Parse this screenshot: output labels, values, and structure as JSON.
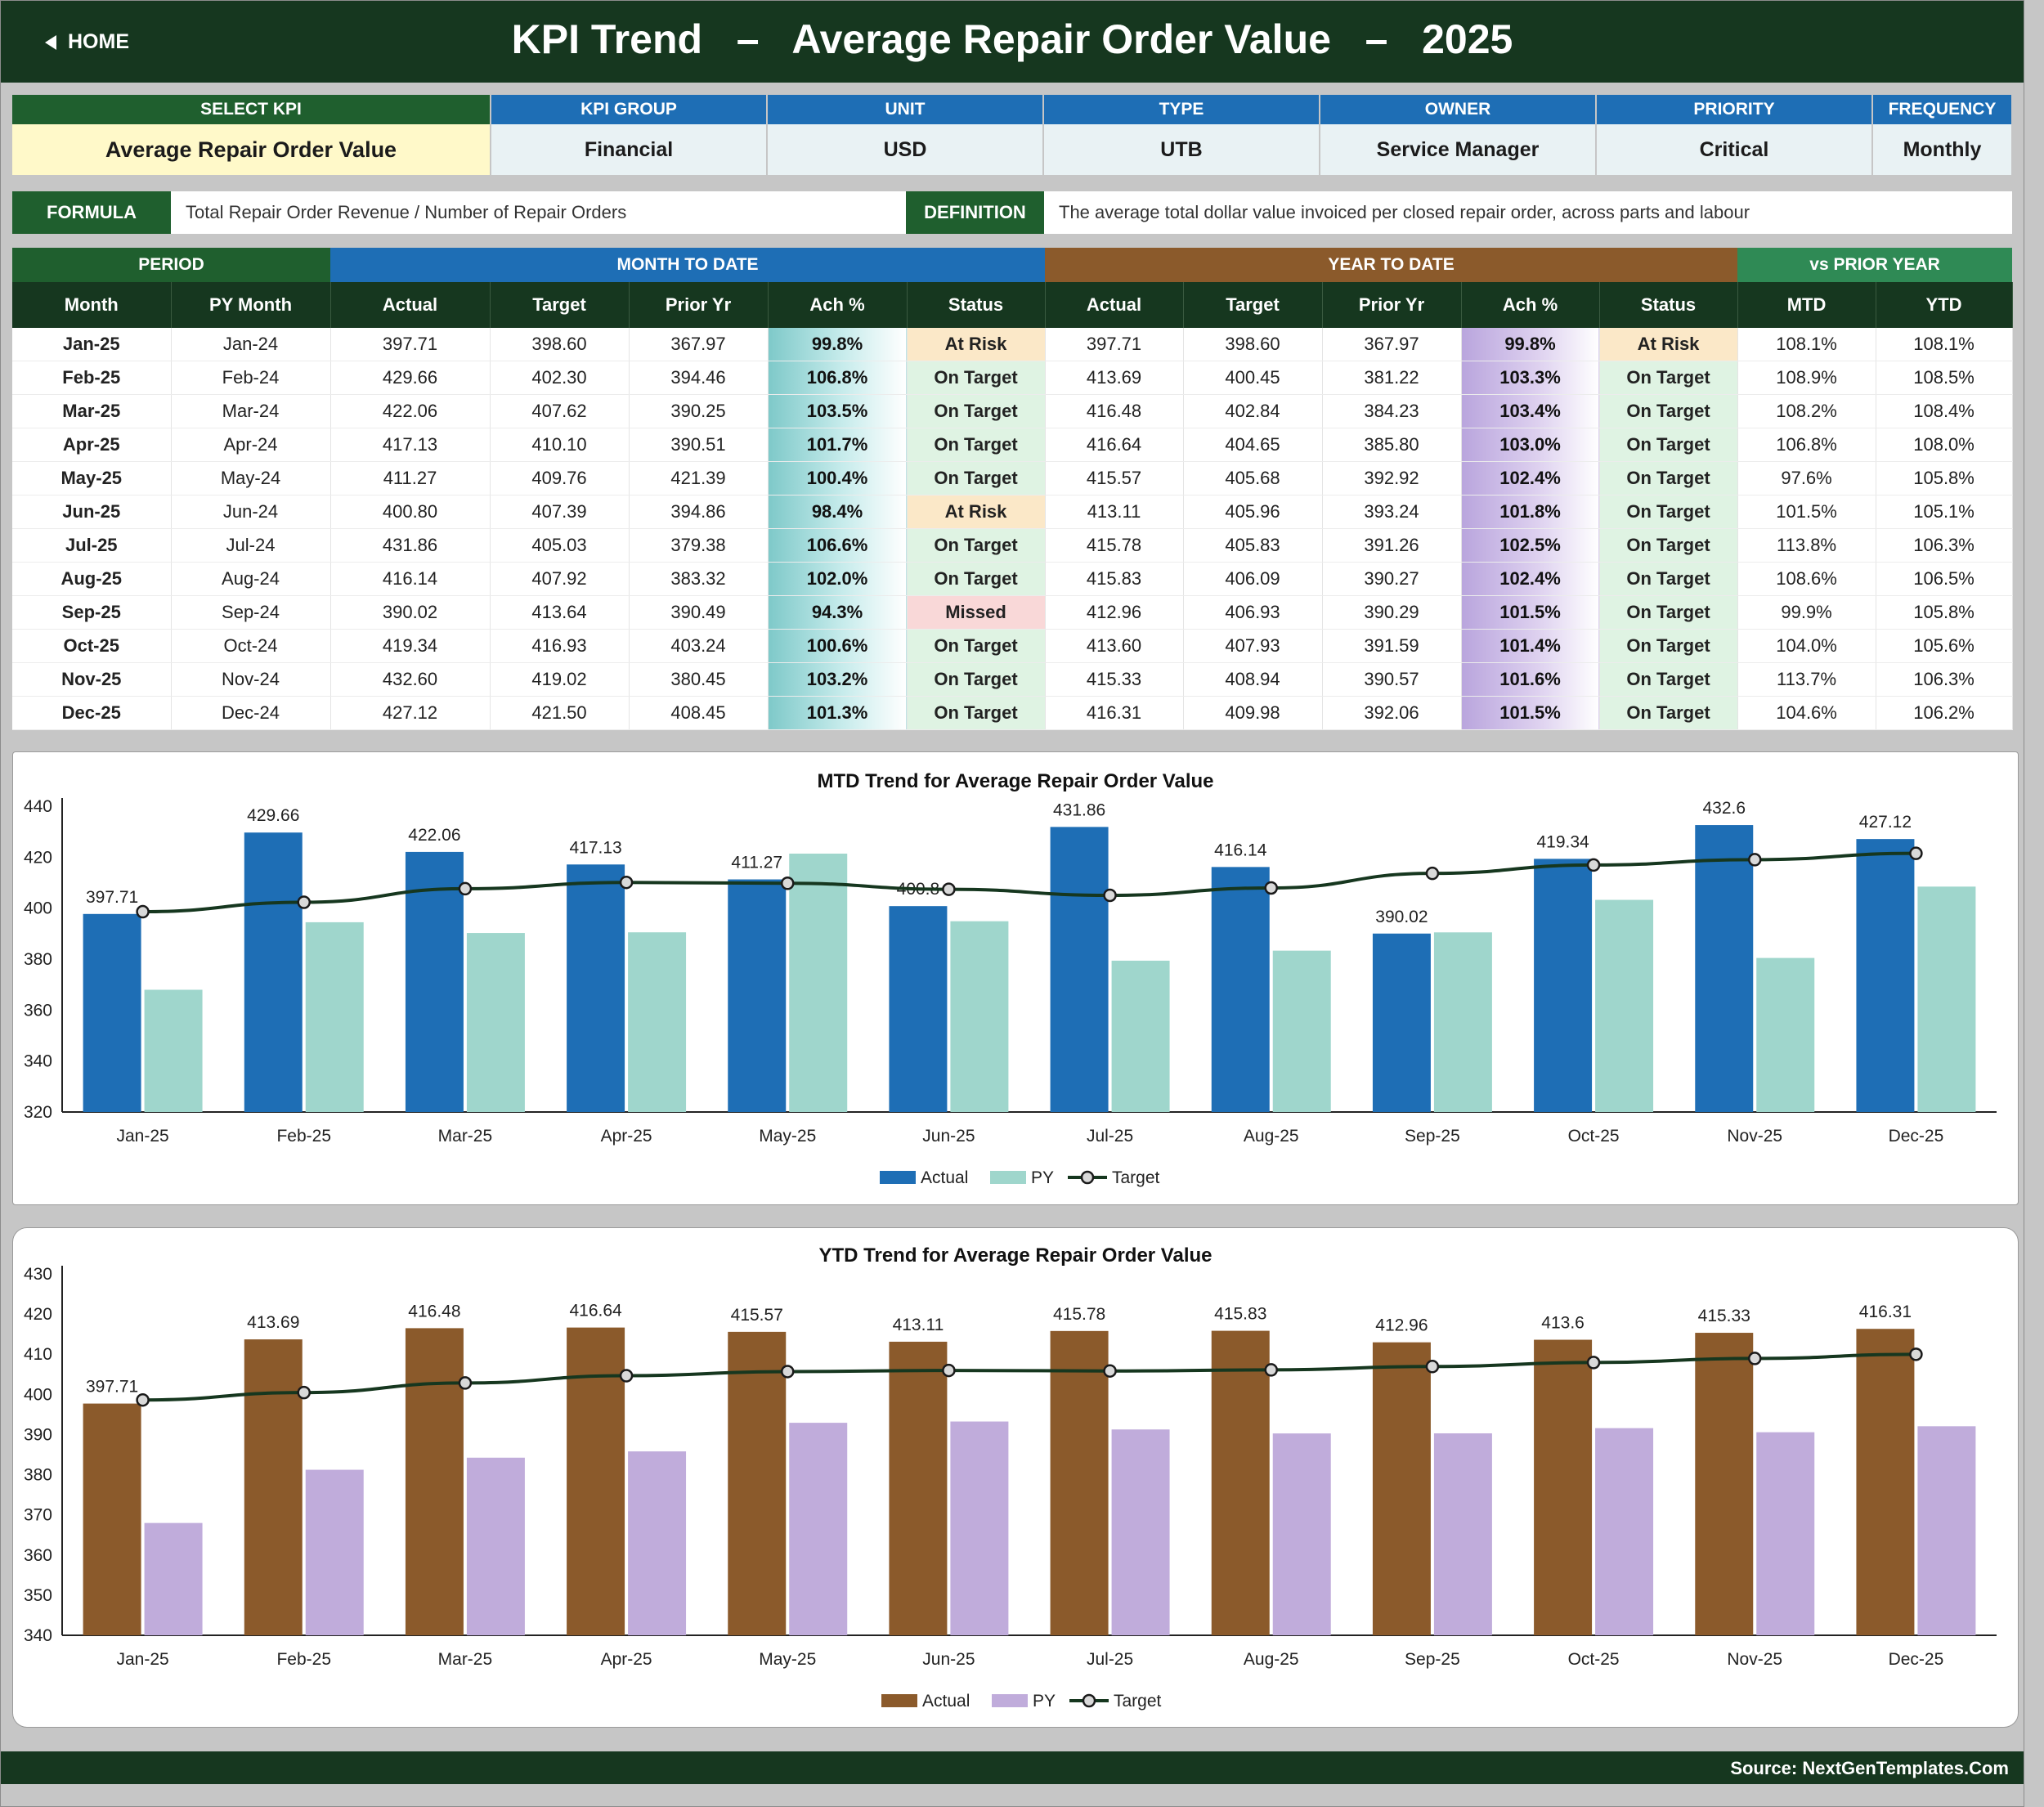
{
  "header": {
    "home_label": "HOME",
    "title": "KPI Trend   –   Average Repair Order Value   –   2025"
  },
  "kpi_info": {
    "headers": [
      "SELECT KPI",
      "KPI GROUP",
      "UNIT",
      "TYPE",
      "OWNER",
      "PRIORITY",
      "FREQUENCY"
    ],
    "values": [
      "Average Repair Order Value",
      "Financial",
      "USD",
      "UTB",
      "Service Manager",
      "Critical",
      "Monthly"
    ]
  },
  "formula": {
    "label": "FORMULA",
    "value": "Total Repair Order Revenue / Number of Repair Orders",
    "definition_label": "DEFINITION",
    "definition": "The average total dollar value invoiced per closed repair order, across parts and labour"
  },
  "table": {
    "groups": [
      "PERIOD",
      "MONTH TO DATE",
      "YEAR TO DATE",
      "vs PRIOR YEAR"
    ],
    "columns": [
      "Month",
      "PY Month",
      "Actual",
      "Target",
      "Prior Yr",
      "Ach %",
      "Status",
      "Actual",
      "Target",
      "Prior Yr",
      "Ach %",
      "Status",
      "MTD",
      "YTD"
    ],
    "rows": [
      [
        "Jan-25",
        "Jan-24",
        "397.71",
        "398.60",
        "367.97",
        "99.8%",
        "At Risk",
        "397.71",
        "398.60",
        "367.97",
        "99.8%",
        "At Risk",
        "108.1%",
        "108.1%"
      ],
      [
        "Feb-25",
        "Feb-24",
        "429.66",
        "402.30",
        "394.46",
        "106.8%",
        "On Target",
        "413.69",
        "400.45",
        "381.22",
        "103.3%",
        "On Target",
        "108.9%",
        "108.5%"
      ],
      [
        "Mar-25",
        "Mar-24",
        "422.06",
        "407.62",
        "390.25",
        "103.5%",
        "On Target",
        "416.48",
        "402.84",
        "384.23",
        "103.4%",
        "On Target",
        "108.2%",
        "108.4%"
      ],
      [
        "Apr-25",
        "Apr-24",
        "417.13",
        "410.10",
        "390.51",
        "101.7%",
        "On Target",
        "416.64",
        "404.65",
        "385.80",
        "103.0%",
        "On Target",
        "106.8%",
        "108.0%"
      ],
      [
        "May-25",
        "May-24",
        "411.27",
        "409.76",
        "421.39",
        "100.4%",
        "On Target",
        "415.57",
        "405.68",
        "392.92",
        "102.4%",
        "On Target",
        "97.6%",
        "105.8%"
      ],
      [
        "Jun-25",
        "Jun-24",
        "400.80",
        "407.39",
        "394.86",
        "98.4%",
        "At Risk",
        "413.11",
        "405.96",
        "393.24",
        "101.8%",
        "On Target",
        "101.5%",
        "105.1%"
      ],
      [
        "Jul-25",
        "Jul-24",
        "431.86",
        "405.03",
        "379.38",
        "106.6%",
        "On Target",
        "415.78",
        "405.83",
        "391.26",
        "102.5%",
        "On Target",
        "113.8%",
        "106.3%"
      ],
      [
        "Aug-25",
        "Aug-24",
        "416.14",
        "407.92",
        "383.32",
        "102.0%",
        "On Target",
        "415.83",
        "406.09",
        "390.27",
        "102.4%",
        "On Target",
        "108.6%",
        "106.5%"
      ],
      [
        "Sep-25",
        "Sep-24",
        "390.02",
        "413.64",
        "390.49",
        "94.3%",
        "Missed",
        "412.96",
        "406.93",
        "390.29",
        "101.5%",
        "On Target",
        "99.9%",
        "105.8%"
      ],
      [
        "Oct-25",
        "Oct-24",
        "419.34",
        "416.93",
        "403.24",
        "100.6%",
        "On Target",
        "413.60",
        "407.93",
        "391.59",
        "101.4%",
        "On Target",
        "104.0%",
        "105.6%"
      ],
      [
        "Nov-25",
        "Nov-24",
        "432.60",
        "419.02",
        "380.45",
        "103.2%",
        "On Target",
        "415.33",
        "408.94",
        "390.57",
        "101.6%",
        "On Target",
        "113.7%",
        "106.3%"
      ],
      [
        "Dec-25",
        "Dec-24",
        "427.12",
        "421.50",
        "408.45",
        "101.3%",
        "On Target",
        "416.31",
        "409.98",
        "392.06",
        "101.5%",
        "On Target",
        "104.6%",
        "106.2%"
      ]
    ]
  },
  "colors": {
    "dark_green": "#16371f",
    "mtd_blue": "#1e6eb5",
    "ytd_brown": "#8b5a2b",
    "vs_py_green": "#2f8a55",
    "mtd_py_bar": "#9fd6cc",
    "ytd_py_bar": "#c0acdb"
  },
  "chart_data": [
    {
      "type": "bar",
      "title": "MTD Trend for Average Repair Order Value",
      "categories": [
        "Jan-25",
        "Feb-25",
        "Mar-25",
        "Apr-25",
        "May-25",
        "Jun-25",
        "Jul-25",
        "Aug-25",
        "Sep-25",
        "Oct-25",
        "Nov-25",
        "Dec-25"
      ],
      "series": [
        {
          "name": "Actual",
          "kind": "bar",
          "color": "#1e6eb5",
          "values": [
            397.71,
            429.66,
            422.06,
            417.13,
            411.27,
            400.8,
            431.86,
            416.14,
            390.02,
            419.34,
            432.6,
            427.12
          ],
          "labels": true
        },
        {
          "name": "PY",
          "kind": "bar",
          "color": "#9fd6cc",
          "values": [
            367.97,
            394.46,
            390.25,
            390.51,
            421.39,
            394.86,
            379.38,
            383.32,
            390.49,
            403.24,
            380.45,
            408.45
          ]
        },
        {
          "name": "Target",
          "kind": "line",
          "color": "#16371f",
          "values": [
            398.6,
            402.3,
            407.62,
            410.1,
            409.76,
            407.39,
            405.03,
            407.92,
            413.64,
            416.93,
            419.02,
            421.5
          ]
        }
      ],
      "ylim": [
        320,
        440
      ],
      "yticks": [
        320,
        340,
        360,
        380,
        400,
        420,
        440
      ],
      "legend": "bottom"
    },
    {
      "type": "bar",
      "title": "YTD Trend for Average Repair Order Value",
      "categories": [
        "Jan-25",
        "Feb-25",
        "Mar-25",
        "Apr-25",
        "May-25",
        "Jun-25",
        "Jul-25",
        "Aug-25",
        "Sep-25",
        "Oct-25",
        "Nov-25",
        "Dec-25"
      ],
      "series": [
        {
          "name": "Actual",
          "kind": "bar",
          "color": "#8b5a2b",
          "values": [
            397.71,
            413.69,
            416.48,
            416.64,
            415.57,
            413.11,
            415.78,
            415.83,
            412.96,
            413.6,
            415.33,
            416.31
          ],
          "labels": true
        },
        {
          "name": "PY",
          "kind": "bar",
          "color": "#c0acdb",
          "values": [
            367.97,
            381.22,
            384.23,
            385.8,
            392.92,
            393.24,
            391.26,
            390.27,
            390.29,
            391.59,
            390.57,
            392.06
          ]
        },
        {
          "name": "Target",
          "kind": "line",
          "color": "#16371f",
          "values": [
            398.6,
            400.45,
            402.84,
            404.65,
            405.68,
            405.96,
            405.83,
            406.09,
            406.93,
            407.93,
            408.94,
            409.98
          ]
        }
      ],
      "ylim": [
        340,
        430
      ],
      "yticks": [
        340,
        350,
        360,
        370,
        380,
        390,
        400,
        410,
        420,
        430
      ],
      "legend": "bottom"
    }
  ],
  "footer": {
    "source": "Source: NextGenTemplates.Com"
  }
}
